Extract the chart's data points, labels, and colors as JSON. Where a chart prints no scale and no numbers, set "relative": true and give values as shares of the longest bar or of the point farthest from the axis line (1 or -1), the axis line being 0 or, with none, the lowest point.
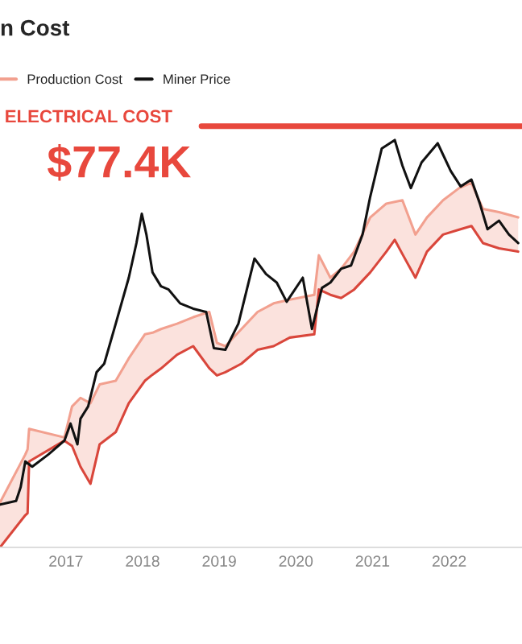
{
  "chart_data": {
    "type": "line",
    "title": "n Cost",
    "relative": true,
    "legend": "top left",
    "marker": "none",
    "line_style": "solid",
    "xlim": [
      2016.14,
      2022.95
    ],
    "xticks": [
      2017,
      2018,
      2019,
      2020,
      2021,
      2022
    ],
    "series": [
      {
        "name": "Production Cost",
        "color": "#f2a08f",
        "x": [
          2016.14,
          2016.47,
          2016.5,
          2016.52,
          2016.98,
          2017.08,
          2017.19,
          2017.32,
          2017.44,
          2017.65,
          2017.82,
          2018.03,
          2018.13,
          2018.24,
          2018.45,
          2018.66,
          2018.87,
          2018.97,
          2019.08,
          2019.29,
          2019.5,
          2019.71,
          2019.92,
          2020.24,
          2020.3,
          2020.45,
          2020.59,
          2020.76,
          2020.97,
          2021.18,
          2021.29,
          2021.39,
          2021.56,
          2021.71,
          2021.92,
          2022.13,
          2022.29,
          2022.44,
          2022.65,
          2022.9
        ],
        "values": [
          0.11,
          0.228,
          0.241,
          0.291,
          0.27,
          0.346,
          0.367,
          0.354,
          0.4,
          0.409,
          0.464,
          0.523,
          0.527,
          0.536,
          0.549,
          0.565,
          0.578,
          0.502,
          0.494,
          0.536,
          0.578,
          0.599,
          0.608,
          0.62,
          0.717,
          0.662,
          0.684,
          0.726,
          0.81,
          0.844,
          0.848,
          0.852,
          0.768,
          0.81,
          0.852,
          0.882,
          0.895,
          0.831,
          0.823,
          0.81
        ],
        "lower": [
          0,
          0.079,
          0.084,
          0.211,
          0.262,
          0.249,
          0.198,
          0.156,
          0.253,
          0.283,
          0.354,
          0.409,
          0.424,
          0.439,
          0.473,
          0.494,
          0.44,
          0.422,
          0.43,
          0.451,
          0.485,
          0.494,
          0.515,
          0.523,
          0.633,
          0.62,
          0.612,
          0.633,
          0.675,
          0.726,
          0.755,
          0.72,
          0.662,
          0.726,
          0.768,
          0.78,
          0.789,
          0.747,
          0.734,
          0.726
        ],
        "upper": [
          0.11,
          0.228,
          0.241,
          0.291,
          0.27,
          0.346,
          0.367,
          0.354,
          0.4,
          0.409,
          0.464,
          0.523,
          0.527,
          0.536,
          0.549,
          0.565,
          0.578,
          0.502,
          0.494,
          0.536,
          0.578,
          0.599,
          0.608,
          0.62,
          0.717,
          0.662,
          0.684,
          0.726,
          0.81,
          0.844,
          0.848,
          0.852,
          0.768,
          0.81,
          0.852,
          0.882,
          0.895,
          0.831,
          0.823,
          0.81
        ]
      },
      {
        "color": "#d9463b",
        "x": [
          2016.14,
          2016.47,
          2016.5,
          2016.52,
          2016.98,
          2017.08,
          2017.19,
          2017.32,
          2017.44,
          2017.65,
          2017.82,
          2018.03,
          2018.13,
          2018.24,
          2018.45,
          2018.66,
          2018.87,
          2018.97,
          2019.08,
          2019.29,
          2019.5,
          2019.71,
          2019.92,
          2020.24,
          2020.3,
          2020.45,
          2020.59,
          2020.76,
          2020.97,
          2021.18,
          2021.29,
          2021.39,
          2021.56,
          2021.71,
          2021.92,
          2022.13,
          2022.29,
          2022.44,
          2022.65,
          2022.9
        ],
        "values": [
          0,
          0.079,
          0.084,
          0.211,
          0.262,
          0.249,
          0.198,
          0.156,
          0.253,
          0.283,
          0.354,
          0.409,
          0.424,
          0.439,
          0.473,
          0.494,
          0.44,
          0.422,
          0.43,
          0.451,
          0.485,
          0.494,
          0.515,
          0.523,
          0.633,
          0.62,
          0.612,
          0.633,
          0.675,
          0.726,
          0.755,
          0.72,
          0.662,
          0.726,
          0.768,
          0.78,
          0.789,
          0.747,
          0.734,
          0.726
        ]
      },
      {
        "name": "Miner Price",
        "color": "#111111",
        "x": [
          2016.14,
          2016.35,
          2016.41,
          2016.47,
          2016.56,
          2016.77,
          2016.98,
          2017.06,
          2017.15,
          2017.19,
          2017.29,
          2017.4,
          2017.5,
          2017.65,
          2017.82,
          2017.92,
          2017.99,
          2018.05,
          2018.13,
          2018.24,
          2018.34,
          2018.49,
          2018.66,
          2018.83,
          2018.93,
          2019.08,
          2019.25,
          2019.46,
          2019.61,
          2019.75,
          2019.88,
          2020.09,
          2020.21,
          2020.34,
          2020.45,
          2020.59,
          2020.72,
          2020.87,
          2020.97,
          2021.12,
          2021.29,
          2021.39,
          2021.5,
          2021.64,
          2021.85,
          2022.02,
          2022.15,
          2022.29,
          2022.4,
          2022.5,
          2022.65,
          2022.78,
          2022.9
        ],
        "values": [
          0.105,
          0.114,
          0.148,
          0.211,
          0.198,
          0.228,
          0.262,
          0.304,
          0.253,
          0.316,
          0.346,
          0.43,
          0.451,
          0.549,
          0.662,
          0.747,
          0.819,
          0.768,
          0.675,
          0.641,
          0.633,
          0.599,
          0.586,
          0.578,
          0.489,
          0.485,
          0.549,
          0.709,
          0.671,
          0.65,
          0.603,
          0.662,
          0.536,
          0.637,
          0.65,
          0.684,
          0.692,
          0.768,
          0.861,
          0.979,
          1,
          0.937,
          0.882,
          0.945,
          0.992,
          0.924,
          0.886,
          0.903,
          0.844,
          0.781,
          0.802,
          0.768,
          0.747
        ]
      }
    ],
    "ref_lines": [
      {
        "axis": "y",
        "value": 1.034,
        "label": "ELECTRICAL COST",
        "color": "#e8483d"
      }
    ],
    "annotations": [
      "$77.4K"
    ]
  }
}
